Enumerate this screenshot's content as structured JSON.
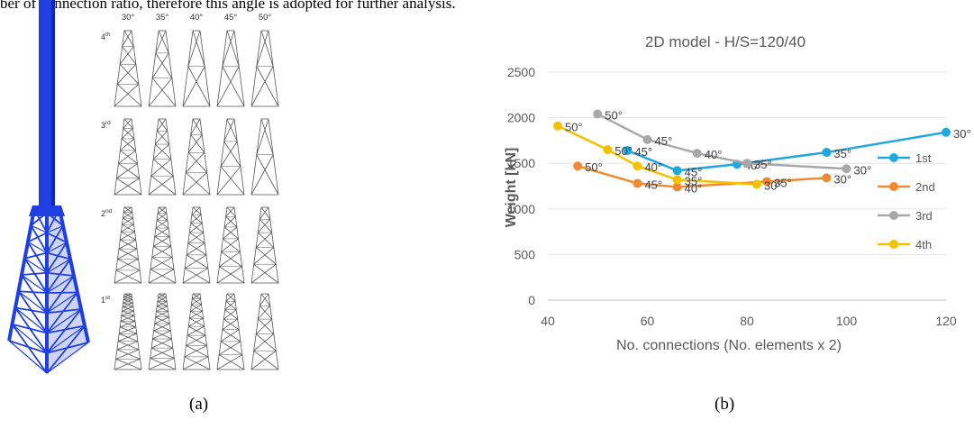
{
  "top_caption": "ber of connection ratio, therefore this angle is adopted for further analysis.",
  "panel_a": {
    "label": "(a)",
    "angles": [
      "30°",
      "35°",
      "40°",
      "45°",
      "50°"
    ],
    "rows": [
      {
        "name": "4th",
        "base": "4",
        "sup": "th",
        "bays": 4
      },
      {
        "name": "3rd",
        "base": "3",
        "sup": "rd",
        "bays": 6
      },
      {
        "name": "2nd",
        "base": "2",
        "sup": "nd",
        "bays": 9
      },
      {
        "name": "1st",
        "base": "1",
        "sup": "st",
        "bays": 13
      }
    ],
    "tower_color": "#1f3fe0"
  },
  "panel_b": {
    "label": "(b)"
  },
  "chart_data": {
    "type": "line",
    "title": "2D model - H/S=120/40",
    "xlabel": "No. connections (No. elements x 2)",
    "ylabel": "Weight [kN]",
    "xlim": [
      40,
      120
    ],
    "ylim": [
      0,
      2500
    ],
    "xticks": [
      40,
      60,
      80,
      100,
      120
    ],
    "yticks": [
      0,
      500,
      1000,
      1500,
      2000,
      2500
    ],
    "grid": "horizontal",
    "legend": "right",
    "series": [
      {
        "name": "1st",
        "color": "#1fa8de",
        "points": [
          {
            "x": 56,
            "y": 1640,
            "label": "45°"
          },
          {
            "x": 66,
            "y": 1420,
            "label": "45°"
          },
          {
            "x": 78,
            "y": 1490,
            "label": "40°"
          },
          {
            "x": 96,
            "y": 1620,
            "label": "35°"
          },
          {
            "x": 120,
            "y": 1840,
            "label": "30°"
          }
        ]
      },
      {
        "name": "2nd",
        "color": "#f08a30",
        "points": [
          {
            "x": 46,
            "y": 1470,
            "label": "50°"
          },
          {
            "x": 58,
            "y": 1280,
            "label": "45°"
          },
          {
            "x": 66,
            "y": 1240,
            "label": "40°"
          },
          {
            "x": 84,
            "y": 1300,
            "label": "35°"
          },
          {
            "x": 96,
            "y": 1340,
            "label": "30°"
          }
        ]
      },
      {
        "name": "3rd",
        "color": "#a8a8a8",
        "points": [
          {
            "x": 50,
            "y": 2040,
            "label": "50°"
          },
          {
            "x": 60,
            "y": 1760,
            "label": "45°"
          },
          {
            "x": 70,
            "y": 1610,
            "label": "40°"
          },
          {
            "x": 80,
            "y": 1500,
            "label": "35°"
          },
          {
            "x": 100,
            "y": 1440,
            "label": "30°"
          }
        ]
      },
      {
        "name": "4th",
        "color": "#f5c000",
        "points": [
          {
            "x": 42,
            "y": 1910,
            "label": "50°"
          },
          {
            "x": 52,
            "y": 1650,
            "label": "50°"
          },
          {
            "x": 58,
            "y": 1470,
            "label": "40°"
          },
          {
            "x": 66,
            "y": 1320,
            "label": "35°"
          },
          {
            "x": 82,
            "y": 1270,
            "label": "30°"
          }
        ]
      }
    ]
  }
}
